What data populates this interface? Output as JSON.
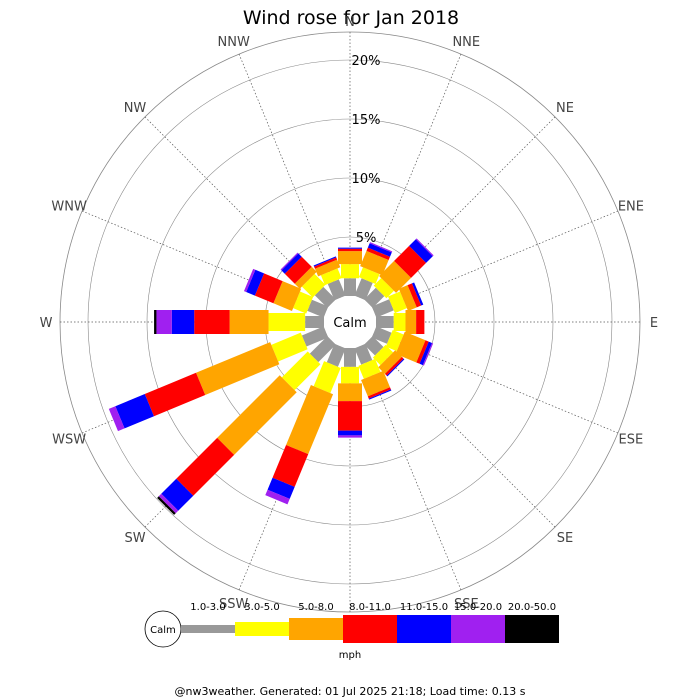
{
  "title": "Wind rose for Jan 2018",
  "footer": "@nw3weather. Generated: 01 Jul 2025 21:18; Load time: 0.13 s",
  "calm_label": "Calm",
  "unit": "mph",
  "chart_data": {
    "type": "wind-rose",
    "title": "Wind rose for Jan 2018",
    "radial_unit": "%",
    "radial_max": 22,
    "ring_labels": [
      "5%",
      "10%",
      "15%",
      "20%"
    ],
    "ring_values": [
      5,
      10,
      15,
      20
    ],
    "directions": [
      "N",
      "NNE",
      "NE",
      "ENE",
      "E",
      "ESE",
      "SE",
      "SSE",
      "S",
      "SSW",
      "SW",
      "WSW",
      "W",
      "WNW",
      "NW",
      "NNW"
    ],
    "speed_bins": [
      {
        "label": "1.0-3.0",
        "color": "#999999"
      },
      {
        "label": "3.0-5.0",
        "color": "#ffff00"
      },
      {
        "label": "5.0-8.0",
        "color": "#ffa500"
      },
      {
        "label": "8.0-11.0",
        "color": "#ff0000"
      },
      {
        "label": "11.0-15.0",
        "color": "#0000ff"
      },
      {
        "label": "15.0-20.0",
        "color": "#a020f0"
      },
      {
        "label": "20.0-50.0",
        "color": "#000000"
      }
    ],
    "cumulative_by_direction": [
      [
        1.5,
        2.7,
        3.8,
        4.0,
        4.1,
        4.1,
        4.1
      ],
      [
        1.6,
        2.5,
        3.9,
        4.2,
        4.6,
        4.7,
        4.7
      ],
      [
        1.4,
        2.3,
        4.1,
        5.9,
        6.7,
        6.8,
        6.8
      ],
      [
        1.6,
        2.7,
        3.5,
        3.9,
        4.1,
        4.1,
        4.1
      ],
      [
        1.5,
        2.5,
        3.4,
        4.1,
        4.1,
        4.1,
        4.1
      ],
      [
        1.4,
        2.4,
        4.3,
        4.6,
        4.9,
        5.0,
        5.0
      ],
      [
        1.3,
        2.2,
        3.0,
        3.2,
        3.3,
        3.3,
        3.3
      ],
      [
        1.5,
        2.7,
        4.2,
        4.4,
        4.5,
        4.5,
        4.5
      ],
      [
        1.6,
        3.0,
        4.5,
        7.0,
        7.4,
        7.6,
        7.6
      ],
      [
        1.7,
        4.0,
        9.5,
        12.5,
        13.6,
        14.1,
        14.1
      ],
      [
        2.1,
        5.2,
        12.7,
        17.6,
        19.4,
        19.7,
        19.9
      ],
      [
        2.0,
        4.7,
        11.5,
        16.2,
        18.9,
        19.5,
        19.5
      ],
      [
        1.6,
        4.7,
        8.0,
        11.0,
        12.9,
        14.2,
        14.4
      ],
      [
        1.5,
        2.7,
        4.4,
        6.1,
        6.9,
        7.1,
        7.1
      ],
      [
        1.5,
        2.8,
        3.4,
        4.6,
        5.0,
        5.1,
        5.1
      ],
      [
        1.5,
        2.4,
        3.1,
        3.3,
        3.4,
        3.4,
        3.4
      ]
    ]
  }
}
